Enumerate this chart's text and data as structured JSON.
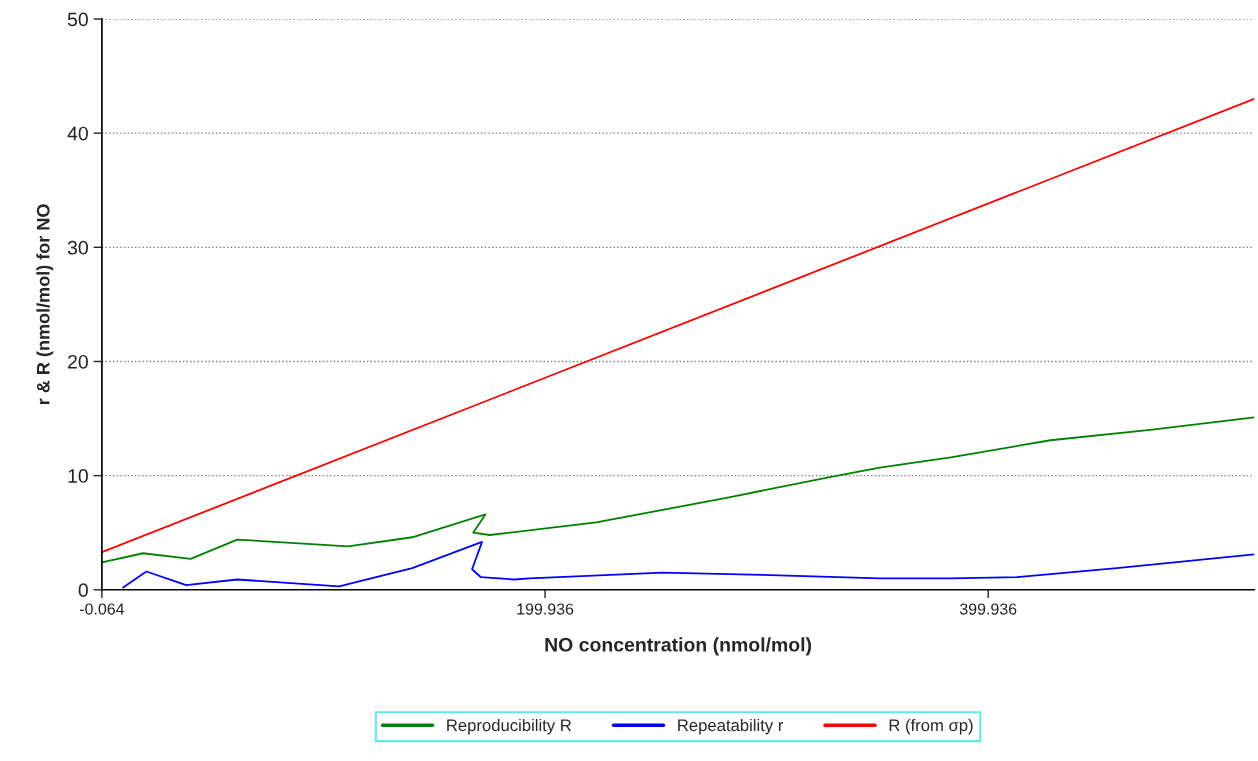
{
  "chart_data": {
    "type": "line",
    "xlabel": "NO concentration (nmol/mol)",
    "ylabel": "r & R (nmol/mol) for NO",
    "xlim": [
      -0.064,
      520
    ],
    "xticks": [
      -0.064,
      199.936,
      399.936
    ],
    "ylim": [
      0,
      50
    ],
    "yticks": [
      0,
      10,
      20,
      30,
      40,
      50
    ],
    "grid": "y",
    "legend": "bottom",
    "line_style": "solid",
    "series": [
      {
        "name": "Reproducibility R",
        "color": "#008000",
        "x": [
          -0.064,
          18.5,
          40,
          61,
          111,
          140,
          173,
          167.5,
          175,
          223,
          283,
          329,
          351,
          383,
          428,
          473,
          520
        ],
        "values": [
          2.4,
          3.2,
          2.7,
          4.4,
          3.8,
          4.6,
          6.6,
          5.0,
          4.8,
          5.9,
          8.1,
          9.9,
          10.7,
          11.6,
          13.1,
          14.0,
          15.1
        ]
      },
      {
        "name": "Repeatability r",
        "color": "#0000ff",
        "x": [
          9.5,
          20,
          38,
          61,
          107,
          140,
          171.5,
          167,
          171,
          186,
          193,
          253,
          298,
          351,
          383,
          413,
          458,
          520
        ],
        "values": [
          0.2,
          1.6,
          0.4,
          0.9,
          0.3,
          1.9,
          4.2,
          1.8,
          1.1,
          0.9,
          1.0,
          1.5,
          1.3,
          1.0,
          1.0,
          1.1,
          1.9,
          3.1
        ]
      },
      {
        "name": "R (from σp)",
        "color": "#ff0000",
        "x": [
          -0.064,
          520
        ],
        "values": [
          3.3,
          43
        ]
      }
    ]
  }
}
